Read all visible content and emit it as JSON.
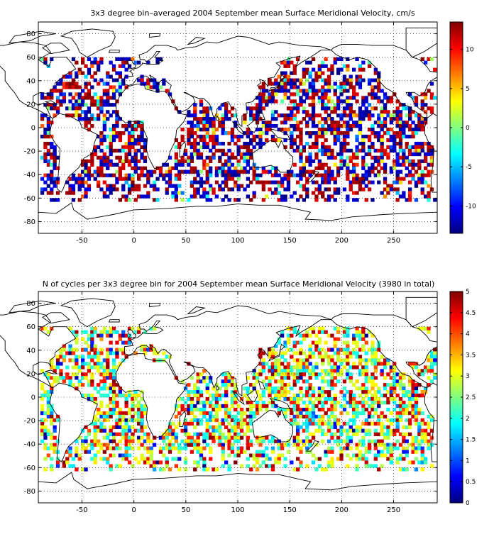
{
  "maps": [
    {
      "title": "3x3 degree bin–averaged 2004 September mean Surface Meridional Velocity, cm/s",
      "x_ticks": [
        "-50",
        "0",
        "50",
        "100",
        "150",
        "200",
        "250"
      ],
      "y_ticks": [
        "80",
        "60",
        "40",
        "20",
        "0",
        "-20",
        "-40",
        "-60",
        "-80"
      ],
      "colorbar": {
        "ticks": [
          "10",
          "5",
          "0",
          "-5",
          "-10"
        ],
        "range": [
          -13.5,
          13.5
        ]
      },
      "seed": 17
    },
    {
      "title": "N of cycles per 3x3 degree bin for 2004 September mean Surface Meridional Velocity (3980 in total)",
      "x_ticks": [
        "-50",
        "0",
        "50",
        "100",
        "150",
        "200",
        "250"
      ],
      "y_ticks": [
        "80",
        "60",
        "40",
        "20",
        "0",
        "-20",
        "-40",
        "-60",
        "-80"
      ],
      "colorbar": {
        "ticks": [
          "5",
          "4.5",
          "4",
          "3.5",
          "3",
          "2.5",
          "2",
          "1.5",
          "1",
          "0.5",
          "0"
        ],
        "range": [
          0,
          5
        ]
      },
      "seed": 91
    }
  ]
}
